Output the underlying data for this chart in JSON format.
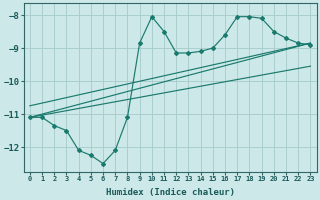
{
  "line1_x": [
    0,
    1,
    2,
    3,
    4,
    5,
    6,
    7,
    8,
    9,
    10,
    11,
    12,
    13,
    14,
    15,
    16,
    17,
    18,
    19,
    20,
    21,
    22,
    23
  ],
  "line1_y": [
    -11.1,
    -11.1,
    -11.35,
    -11.5,
    -12.1,
    -12.25,
    -12.5,
    -12.1,
    -11.1,
    -8.85,
    -8.05,
    -8.5,
    -9.15,
    -9.15,
    -9.1,
    -9.0,
    -8.6,
    -8.05,
    -8.05,
    -8.1,
    -8.5,
    -8.7,
    -8.85,
    -8.9
  ],
  "line2_x": [
    0,
    23
  ],
  "line2_y": [
    -11.1,
    -8.85
  ],
  "line3_x": [
    0,
    23
  ],
  "line3_y": [
    -11.1,
    -9.55
  ],
  "line4_x": [
    0,
    23
  ],
  "line4_y": [
    -10.75,
    -8.85
  ],
  "color": "#1a7a6e",
  "bg_color": "#cde8e8",
  "grid_color": "#aacece",
  "xlabel": "Humidex (Indice chaleur)",
  "xlim": [
    -0.5,
    23.5
  ],
  "ylim": [
    -12.75,
    -7.65
  ],
  "yticks": [
    -12,
    -11,
    -10,
    -9,
    -8
  ],
  "xticks": [
    0,
    1,
    2,
    3,
    4,
    5,
    6,
    7,
    8,
    9,
    10,
    11,
    12,
    13,
    14,
    15,
    16,
    17,
    18,
    19,
    20,
    21,
    22,
    23
  ]
}
